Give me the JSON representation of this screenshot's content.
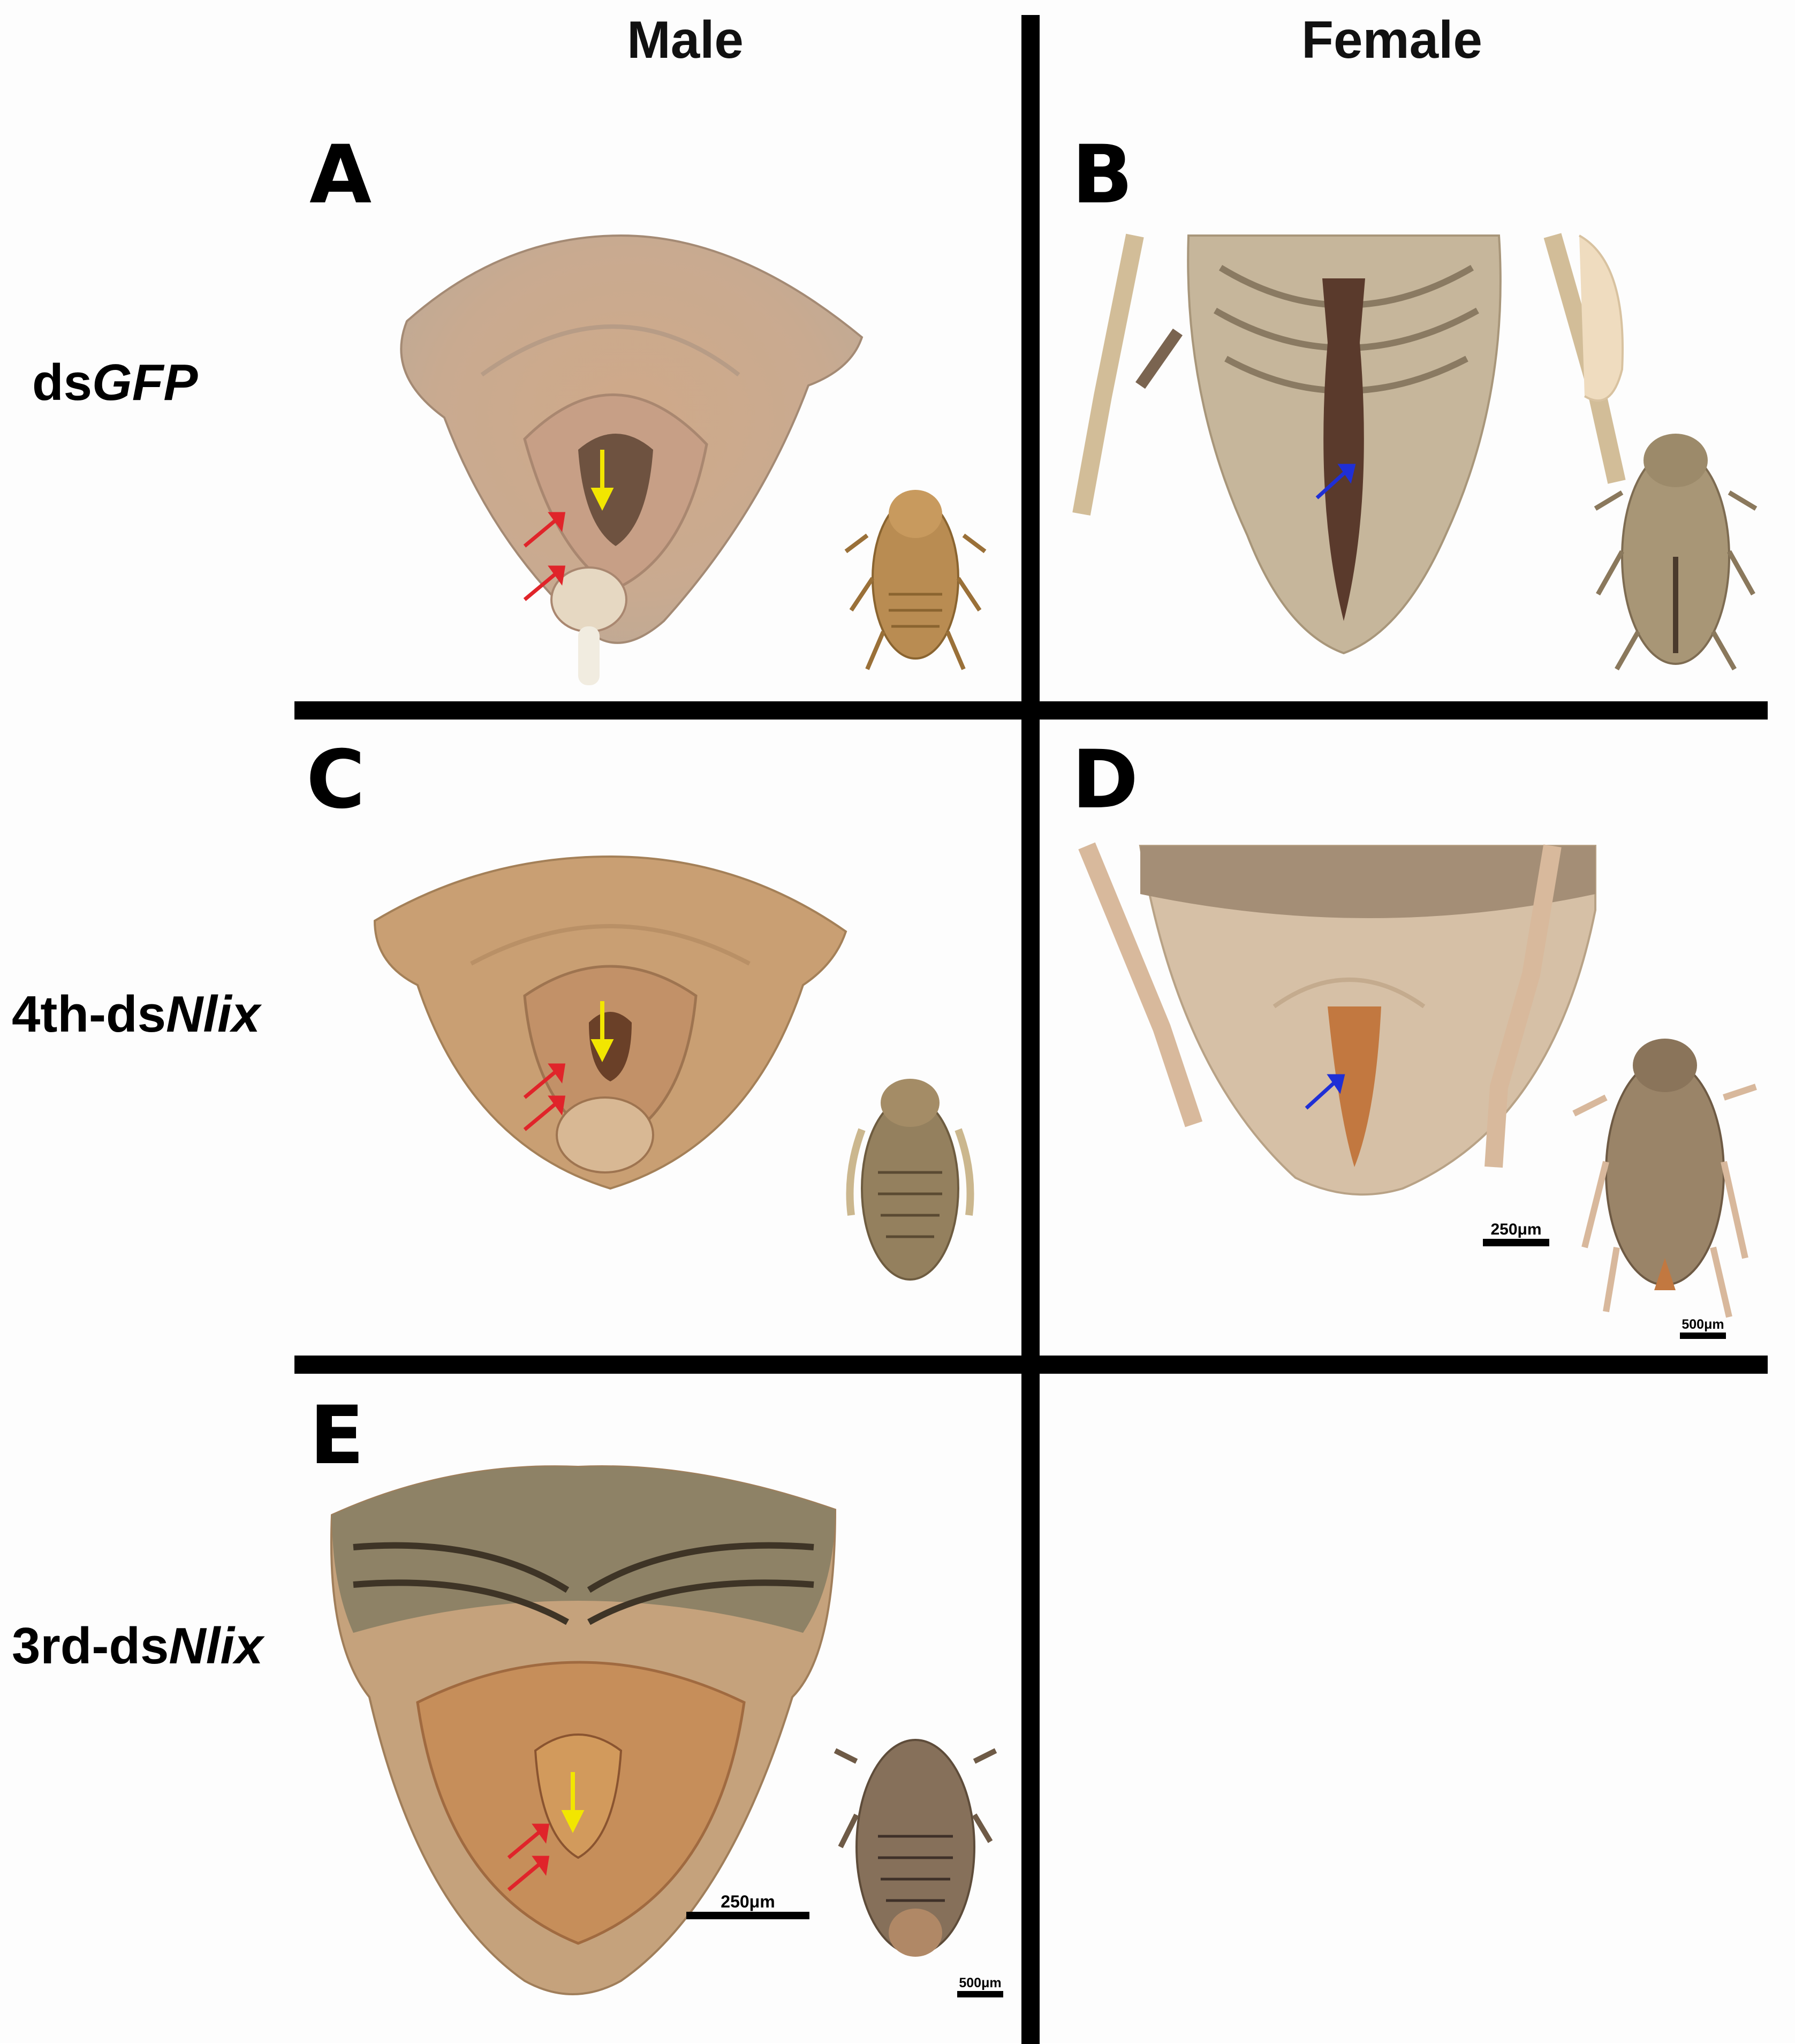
{
  "columns": {
    "male": "Male",
    "female": "Female"
  },
  "rows": [
    {
      "prefix": "ds",
      "italic": "GFP"
    },
    {
      "prefix": "4th-ds",
      "italic": "Nlix"
    },
    {
      "prefix": "3rd-ds",
      "italic": "Nlix"
    }
  ],
  "panels": {
    "A": "A",
    "B": "B",
    "C": "C",
    "D": "D",
    "E": "E"
  },
  "scale_bars": {
    "d_genitalia": "250μm",
    "d_whole": "500μm",
    "e_genitalia": "250μm",
    "e_whole": "500μm"
  },
  "arrow_colors": {
    "red": "#e0242a",
    "yellow": "#f2e600",
    "blue": "#1f2fd6"
  }
}
